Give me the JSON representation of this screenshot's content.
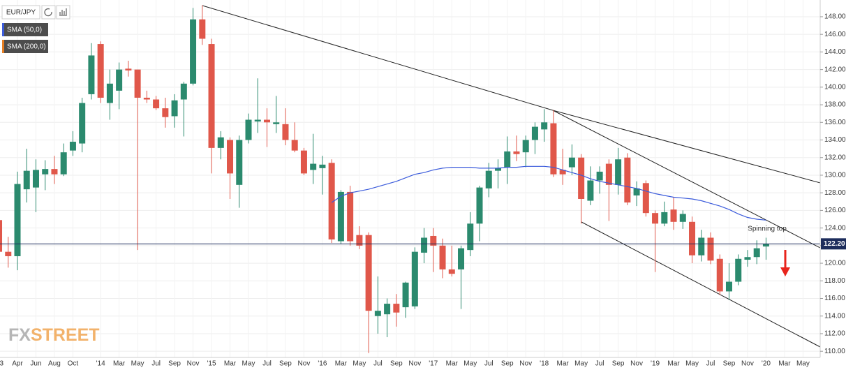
{
  "chart_data": {
    "type": "candlestick",
    "symbol": "EUR/JPY",
    "categories": [
      "'13",
      null,
      "Apr",
      null,
      "Jun",
      null,
      "Aug",
      null,
      "Oct",
      null,
      null,
      "'14",
      null,
      "Mar",
      null,
      "May",
      null,
      "Jul",
      null,
      "Sep",
      null,
      "Nov",
      null,
      "'15",
      null,
      "Mar",
      null,
      "May",
      null,
      "Jul",
      null,
      "Sep",
      null,
      "Nov",
      null,
      "'16",
      null,
      "Mar",
      null,
      "May",
      null,
      "Jul",
      null,
      "Sep",
      null,
      "Nov",
      null,
      "'17",
      null,
      "Mar",
      null,
      "May",
      null,
      "Jul",
      null,
      "Sep",
      null,
      "Nov",
      null,
      "'18",
      null,
      "Mar",
      null,
      "May",
      null,
      "Jul",
      null,
      "Sep",
      null,
      "Nov",
      null,
      "'19",
      null,
      "Mar",
      null,
      "May",
      null,
      "Jul",
      null,
      "Sep",
      null,
      "Nov",
      null,
      "'20",
      null,
      "Mar",
      null,
      "May"
    ],
    "open": [
      124.9,
      121.3,
      120.8,
      128.4,
      128.6,
      130.1,
      130.7,
      130.1,
      132.8,
      133.6,
      139.2,
      144.9,
      138.2,
      139.6,
      142.1,
      142.0,
      138.8,
      138.6,
      137.6,
      136.7,
      138.6,
      140.4,
      147.7,
      144.9,
      133.1,
      134.0,
      128.9,
      134.0,
      136.1,
      136.3,
      135.8,
      135.8,
      134.0,
      132.8,
      130.6,
      130.8,
      131.4,
      122.5,
      128.1,
      123.2,
      123.2,
      114.0,
      114.2,
      115.4,
      115.0,
      115.1,
      121.2,
      123.1,
      122.0,
      119.3,
      119.3,
      121.5,
      124.5,
      128.5,
      130.5,
      130.9,
      132.7,
      132.6,
      134.0,
      135.2,
      135.9,
      130.6,
      130.9,
      132.0,
      127.1,
      129.4,
      131.3,
      128.9,
      132.0,
      127.7,
      129.1,
      125.7,
      124.5,
      126.1,
      124.7,
      124.7,
      120.9,
      122.9,
      120.5,
      116.8,
      117.9,
      120.4,
      120.7,
      121.9,
      null,
      null,
      null,
      null
    ],
    "high": [
      125.6,
      123.0,
      130.4,
      133.0,
      131.8,
      131.7,
      132.2,
      133.6,
      135.0,
      138.8,
      145.0,
      145.2,
      142.0,
      142.8,
      143.0,
      142.0,
      139.6,
      139.0,
      138.8,
      139.2,
      140.6,
      149.0,
      149.3,
      145.5,
      135.0,
      134.3,
      134.5,
      137.0,
      141.0,
      137.6,
      139.0,
      137.6,
      136.0,
      133.1,
      134.7,
      132.2,
      131.8,
      128.3,
      128.8,
      124.2,
      123.5,
      118.5,
      116.0,
      116.5,
      117.9,
      121.8,
      124.0,
      124.0,
      122.8,
      122.0,
      122.0,
      125.8,
      128.8,
      131.4,
      131.8,
      134.4,
      134.5,
      134.5,
      136.0,
      137.5,
      137.4,
      133.0,
      133.5,
      132.4,
      131.0,
      131.0,
      131.8,
      133.1,
      132.5,
      129.3,
      129.4,
      126.0,
      127.0,
      127.5,
      126.0,
      125.3,
      123.8,
      123.5,
      121.0,
      120.0,
      121.0,
      121.5,
      122.6,
      122.9,
      null,
      null,
      null,
      null
    ],
    "low": [
      119.6,
      119.5,
      119.2,
      126.9,
      125.8,
      128.3,
      129.0,
      129.9,
      132.2,
      132.6,
      138.6,
      138.2,
      136.3,
      137.5,
      141.2,
      121.5,
      138.2,
      137.4,
      135.4,
      135.4,
      134.4,
      140.2,
      144.8,
      130.2,
      131.8,
      127.3,
      126.3,
      133.6,
      134.8,
      133.2,
      134.8,
      133.4,
      132.6,
      130.0,
      129.0,
      127.8,
      122.3,
      122.2,
      122.0,
      121.6,
      109.8,
      112.0,
      111.6,
      112.8,
      113.8,
      114.8,
      120.0,
      119.0,
      118.3,
      118.5,
      114.8,
      120.8,
      122.5,
      127.5,
      128.5,
      129.0,
      131.6,
      130.9,
      132.4,
      133.8,
      129.8,
      128.9,
      130.0,
      124.5,
      126.6,
      127.9,
      124.8,
      127.8,
      126.6,
      126.5,
      125.3,
      119.0,
      124.2,
      123.8,
      123.9,
      120.0,
      120.2,
      119.9,
      116.4,
      115.8,
      117.5,
      119.6,
      119.9,
      120.4,
      null,
      null,
      null,
      null
    ],
    "close": [
      121.3,
      120.8,
      129.0,
      130.5,
      130.6,
      130.7,
      130.1,
      132.6,
      133.8,
      138.2,
      143.6,
      138.8,
      140.4,
      142.0,
      141.9,
      138.8,
      138.6,
      137.6,
      136.6,
      138.5,
      140.4,
      147.7,
      145.5,
      133.1,
      134.3,
      130.2,
      134.0,
      136.3,
      136.3,
      136.0,
      136.0,
      134.0,
      132.8,
      130.2,
      131.3,
      131.2,
      122.7,
      128.1,
      122.5,
      122.0,
      114.6,
      114.6,
      115.4,
      114.4,
      117.8,
      121.3,
      122.9,
      122.0,
      119.3,
      118.8,
      121.7,
      124.5,
      128.6,
      130.5,
      130.8,
      132.7,
      132.4,
      134.0,
      135.5,
      136.0,
      130.1,
      130.1,
      132.0,
      127.3,
      129.4,
      130.4,
      128.9,
      131.8,
      126.9,
      128.5,
      125.7,
      124.5,
      125.8,
      124.7,
      125.6,
      120.9,
      122.9,
      120.3,
      116.8,
      117.9,
      120.5,
      120.7,
      121.7,
      122.2,
      null,
      null,
      null,
      null
    ],
    "up_color": "#2b8a6e",
    "down_color": "#e0574a",
    "indicators": [
      {
        "name": "SMA (50,0)",
        "color": "#3b5bdb",
        "values": [
          null,
          null,
          null,
          null,
          null,
          null,
          null,
          null,
          null,
          null,
          null,
          null,
          null,
          null,
          null,
          null,
          null,
          null,
          null,
          null,
          null,
          null,
          null,
          null,
          null,
          null,
          null,
          null,
          null,
          null,
          null,
          null,
          null,
          null,
          null,
          null,
          126.9,
          127.6,
          128.0,
          128.2,
          128.4,
          128.7,
          129.0,
          129.3,
          129.7,
          130.1,
          130.3,
          130.6,
          130.8,
          130.9,
          130.9,
          130.9,
          130.8,
          130.8,
          130.8,
          130.9,
          130.9,
          131.0,
          131.0,
          131.0,
          130.9,
          130.6,
          130.3,
          130.0,
          129.6,
          129.3,
          129.1,
          128.9,
          128.7,
          128.5,
          128.2,
          127.9,
          127.7,
          127.5,
          127.4,
          127.3,
          127.1,
          126.8,
          126.5,
          126.1,
          125.6,
          125.2,
          125.0,
          124.9,
          null,
          null,
          null,
          null
        ]
      },
      {
        "name": "SMA (200,0)",
        "color": "#e67e22"
      }
    ],
    "ylim": [
      109.3,
      149.9
    ],
    "yticks": [
      {
        "value": 110,
        "label": "110.00"
      },
      {
        "value": 112,
        "label": "112.00"
      },
      {
        "value": 114,
        "label": "114.00"
      },
      {
        "value": 116,
        "label": "116.00"
      },
      {
        "value": 118,
        "label": "118.00"
      },
      {
        "value": 120,
        "label": "120.00"
      },
      {
        "value": 122,
        "label": "122.00"
      },
      {
        "value": 124,
        "label": "124.00"
      },
      {
        "value": 126,
        "label": "126.00"
      },
      {
        "value": 128,
        "label": "128.00"
      },
      {
        "value": 130,
        "label": "130.00"
      },
      {
        "value": 132,
        "label": "132.00"
      },
      {
        "value": 134,
        "label": "134.00"
      },
      {
        "value": 136,
        "label": "136.00"
      },
      {
        "value": 138,
        "label": "138.00"
      },
      {
        "value": 140,
        "label": "140.00"
      },
      {
        "value": 142,
        "label": "142.00"
      },
      {
        "value": 144,
        "label": "144.00"
      },
      {
        "value": 146,
        "label": "146.00"
      },
      {
        "value": 148,
        "label": "148.00"
      }
    ],
    "grid": true,
    "last_price": {
      "value": 122.2,
      "label": "122.20"
    },
    "annotation": "Spinning top",
    "logo": [
      "FX",
      "STREET"
    ]
  }
}
